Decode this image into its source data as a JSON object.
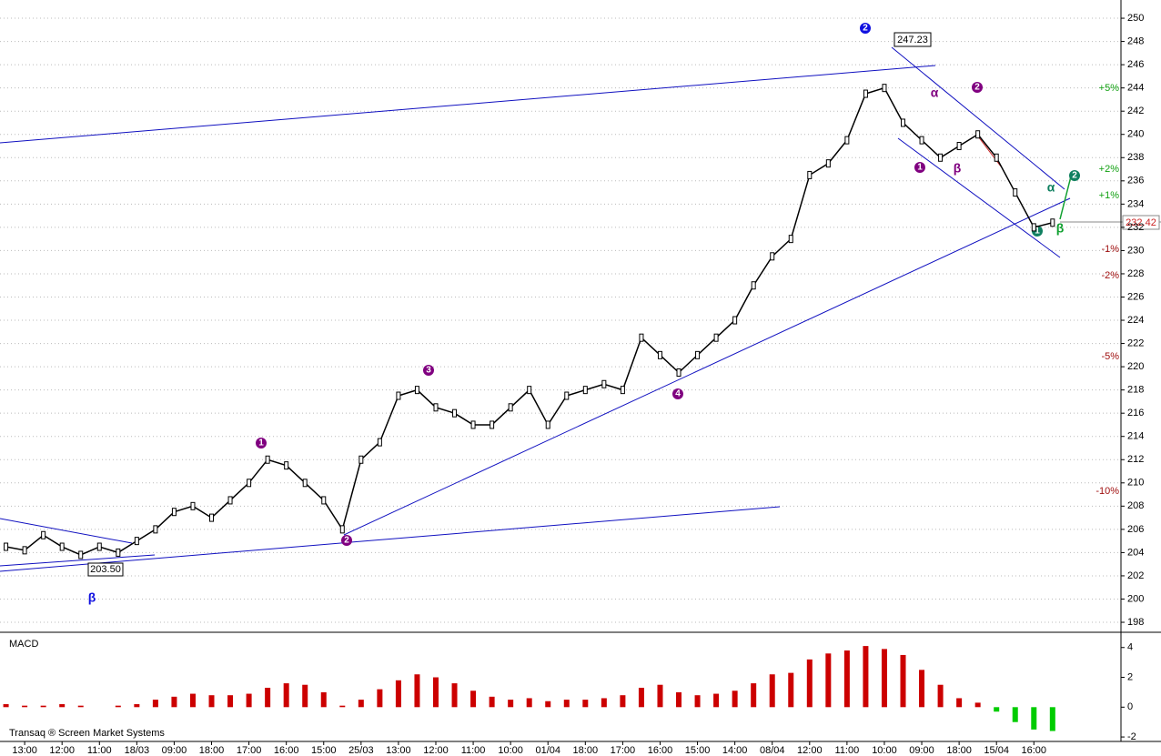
{
  "chart_data": {
    "type": "line",
    "x": [
      -0.5,
      0,
      0.5,
      1,
      1.5,
      2,
      2.5,
      3,
      3.5,
      4,
      4.5,
      5,
      5.5,
      6,
      6.5,
      7,
      7.5,
      8,
      8.5,
      9,
      9.5,
      10,
      10.5,
      11,
      11.5,
      12,
      12.5,
      13,
      13.5,
      14,
      14.5,
      15,
      15.5,
      16,
      16.5,
      17,
      17.5,
      18,
      18.5,
      19,
      19.5,
      20,
      20.5,
      21,
      21.5,
      22,
      22.5,
      23,
      23.5,
      24,
      24.5,
      25,
      25.5,
      26,
      26.5,
      27,
      27.5
    ],
    "series": [
      {
        "color": "#000000",
        "values": [
          204.5,
          204.2,
          205.5,
          204.5,
          203.8,
          204.5,
          204,
          205,
          206,
          207.5,
          208,
          207,
          208.5,
          210,
          212,
          211.5,
          210,
          208.5,
          206,
          212,
          213.5,
          217.5,
          218,
          216.5,
          216,
          215,
          215,
          216.5,
          218,
          215,
          217.5,
          218,
          218.5,
          218,
          222.5,
          221,
          219.5,
          221,
          222.5,
          224,
          227,
          229.5,
          231,
          236.5,
          237.5,
          239.5,
          243.5,
          244,
          241,
          239.5,
          238,
          239,
          240,
          238,
          235,
          232,
          232.4
        ]
      },
      {
        "name": "MACD",
        "color": "#cc0000",
        "axis": "y2",
        "values": [
          0.2,
          0.1,
          0.1,
          0.2,
          0.1,
          0,
          0.1,
          0.2,
          0.5,
          0.7,
          0.9,
          0.8,
          0.8,
          0.9,
          1.3,
          1.6,
          1.5,
          1.0,
          0.1,
          0.5,
          1.2,
          1.8,
          2.2,
          2.0,
          1.6,
          1.1,
          0.7,
          0.5,
          0.6,
          0.4,
          0.5,
          0.5,
          0.6,
          0.8,
          1.3,
          1.5,
          1.0,
          0.8,
          0.9,
          1.1,
          1.6,
          2.2,
          2.3,
          3.2,
          3.6,
          3.8,
          4.1,
          3.9,
          3.5,
          2.5,
          1.5,
          0.6,
          0.3,
          -0.3,
          -1.0,
          -1.5,
          -1.6
        ]
      }
    ],
    "xlim": [
      -0.66,
      29.33
    ],
    "xticks": [
      {
        "value": 0,
        "label": "13:00"
      },
      {
        "value": 1,
        "label": "12:00"
      },
      {
        "value": 2,
        "label": "11:00"
      },
      {
        "value": 3,
        "label": "18/03"
      },
      {
        "value": 4,
        "label": "09:00"
      },
      {
        "value": 5,
        "label": "18:00"
      },
      {
        "value": 6,
        "label": "17:00"
      },
      {
        "value": 7,
        "label": "16:00"
      },
      {
        "value": 8,
        "label": "15:00"
      },
      {
        "value": 9,
        "label": "25/03"
      },
      {
        "value": 10,
        "label": "13:00"
      },
      {
        "value": 11,
        "label": "12:00"
      },
      {
        "value": 12,
        "label": "11:00"
      },
      {
        "value": 13,
        "label": "10:00"
      },
      {
        "value": 14,
        "label": "01/04"
      },
      {
        "value": 15,
        "label": "18:00"
      },
      {
        "value": 16,
        "label": "17:00"
      },
      {
        "value": 17,
        "label": "16:00"
      },
      {
        "value": 18,
        "label": "15:00"
      },
      {
        "value": 19,
        "label": "14:00"
      },
      {
        "value": 20,
        "label": "08/04"
      },
      {
        "value": 21,
        "label": "12:00"
      },
      {
        "value": 22,
        "label": "11:00"
      },
      {
        "value": 23,
        "label": "10:00"
      },
      {
        "value": 24,
        "label": "09:00"
      },
      {
        "value": 25,
        "label": "18:00"
      },
      {
        "value": 26,
        "label": "15/04"
      },
      {
        "value": 27,
        "label": "16:00"
      }
    ],
    "ylim": [
      197.14,
      251.57
    ],
    "yticks": [
      198,
      200,
      202,
      204,
      206,
      208,
      210,
      212,
      214,
      216,
      218,
      220,
      222,
      224,
      226,
      228,
      230,
      232,
      234,
      236,
      238,
      240,
      242,
      244,
      246,
      248,
      250
    ],
    "y2lim": [
      -2.3,
      4.9
    ],
    "y2ticks": [
      -2,
      0,
      2,
      4
    ],
    "y2_positive_color": "#00cc00",
    "grid": true,
    "panel_label": "MACD",
    "footer": "Transaq ® Screen Market Systems",
    "price_labels": [
      "247.23",
      "203.50",
      "232.42"
    ],
    "percent_labels": [
      "+5%",
      "+2%",
      "+1%",
      "-1%",
      "-2%",
      "-5%",
      "-10%"
    ],
    "wave_labels": [
      "1",
      "2",
      "3",
      "4",
      "α",
      "β"
    ]
  }
}
